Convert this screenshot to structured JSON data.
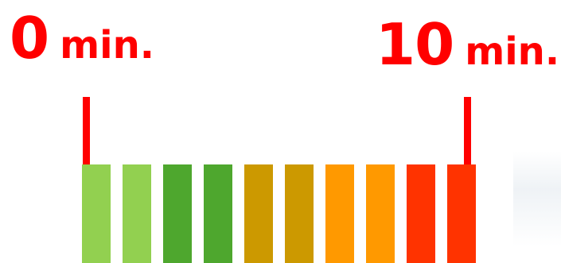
{
  "labels": {
    "start": {
      "value": "0",
      "unit": "min."
    },
    "end": {
      "value": "10",
      "unit": "min."
    }
  },
  "colors": {
    "accent": "#ff0000"
  },
  "segments": [
    {
      "color": "#92d050"
    },
    {
      "color": "#92d050"
    },
    {
      "color": "#4ea72e"
    },
    {
      "color": "#4ea72e"
    },
    {
      "color": "#cc9900"
    },
    {
      "color": "#cc9900"
    },
    {
      "color": "#ff9900"
    },
    {
      "color": "#ff9900"
    },
    {
      "color": "#ff3300"
    },
    {
      "color": "#ff3300"
    }
  ]
}
